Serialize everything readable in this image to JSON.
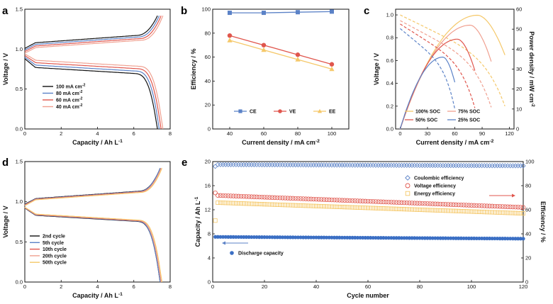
{
  "chart_data": [
    {
      "panel": "a",
      "type": "line",
      "xlabel": "Capacity / Ah L",
      "xlabel_sup": "-1",
      "ylabel": "Voltage / V",
      "xlim": [
        0,
        8
      ],
      "ylim": [
        0,
        1.5
      ],
      "xticks": [
        0,
        2,
        4,
        6,
        8
      ],
      "yticks": [
        0.0,
        0.5,
        1.0,
        1.5
      ],
      "xtick_labels": [
        "0",
        "2",
        "4",
        "6",
        "8"
      ],
      "ytick_labels": [
        "0.0",
        "0.5",
        "1.0",
        "1.5"
      ],
      "legend_position": "bottom-left",
      "series": [
        {
          "name": "100 mA cm",
          "sup": "-2",
          "color": "#111111",
          "charge_start": 1.01,
          "charge_mid": 1.08,
          "charge_end": 1.4,
          "discharge_start": 0.88,
          "discharge_mid": 0.77,
          "capacity": 7.3
        },
        {
          "name": "80 mA cm",
          "sup": "-2",
          "color": "#5b82c7",
          "charge_start": 0.99,
          "charge_mid": 1.06,
          "charge_end": 1.4,
          "discharge_start": 0.9,
          "discharge_mid": 0.8,
          "capacity": 7.4
        },
        {
          "name": "60 mA cm",
          "sup": "-2",
          "color": "#e0564d",
          "charge_start": 0.97,
          "charge_mid": 1.04,
          "charge_end": 1.4,
          "discharge_start": 0.92,
          "discharge_mid": 0.83,
          "capacity": 7.5
        },
        {
          "name": "40 mA cm",
          "sup": "-2",
          "color": "#f0a090",
          "charge_start": 0.95,
          "charge_mid": 1.02,
          "charge_end": 1.4,
          "discharge_start": 0.94,
          "discharge_mid": 0.86,
          "capacity": 7.6
        }
      ]
    },
    {
      "panel": "b",
      "type": "line",
      "xlabel": "Current density / mA cm",
      "xlabel_sup": "-2",
      "ylabel": "Efficiency / %",
      "xlim": [
        30,
        110
      ],
      "ylim": [
        0,
        100
      ],
      "xticks": [
        40,
        60,
        80,
        100
      ],
      "yticks": [
        0,
        20,
        40,
        60,
        80,
        100
      ],
      "xtick_labels": [
        "40",
        "60",
        "80",
        "100"
      ],
      "ytick_labels": [
        "0",
        "20",
        "40",
        "60",
        "80",
        "100"
      ],
      "legend_position": "bottom-center",
      "x": [
        40,
        60,
        80,
        100
      ],
      "series": [
        {
          "name": "CE",
          "color": "#5b82c7",
          "marker": "square",
          "values": [
            97,
            97,
            97.5,
            98
          ]
        },
        {
          "name": "VE",
          "color": "#e0564d",
          "marker": "circle",
          "values": [
            78,
            70,
            62,
            54
          ]
        },
        {
          "name": "EE",
          "color": "#f5c869",
          "marker": "triangle",
          "values": [
            74,
            66,
            58,
            50
          ]
        }
      ]
    },
    {
      "panel": "c",
      "type": "line",
      "xlabel": "Current density / mA cm",
      "xlabel_sup": "-2",
      "ylabel": "Voltage / V",
      "y2label": "Power density / mW cm",
      "y2label_sup": "-2",
      "xlim": [
        -5,
        125
      ],
      "ylim": [
        0,
        1.05
      ],
      "y2lim": [
        0,
        60
      ],
      "xticks": [
        0,
        30,
        60,
        90,
        120
      ],
      "yticks": [
        0.0,
        0.2,
        0.4,
        0.6,
        0.8,
        1.0
      ],
      "y2ticks": [
        0,
        10,
        20,
        30,
        40,
        50,
        60
      ],
      "xtick_labels": [
        "0",
        "30",
        "60",
        "90",
        "120"
      ],
      "ytick_labels": [
        "0.0",
        "0.2",
        "0.4",
        "0.6",
        "0.8",
        "1.0"
      ],
      "y2tick_labels": [
        "0",
        "10",
        "20",
        "30",
        "40",
        "50",
        "60"
      ],
      "legend_position": "bottom-right",
      "series": [
        {
          "name": "100% SOC",
          "color": "#f5c869",
          "ocv": 1.0,
          "max_current": 115,
          "peak_power": 57,
          "peak_current": 85
        },
        {
          "name": "75% SOC",
          "color": "#f0a090",
          "ocv": 0.95,
          "max_current": 100,
          "peak_power": 52,
          "peak_current": 77
        },
        {
          "name": "50% SOC",
          "color": "#e0564d",
          "ocv": 0.92,
          "max_current": 82,
          "peak_power": 45,
          "peak_current": 63
        },
        {
          "name": "25% SOC",
          "color": "#5b82c7",
          "ocv": 0.88,
          "max_current": 60,
          "peak_power": 36,
          "peak_current": 47
        }
      ]
    },
    {
      "panel": "d",
      "type": "line",
      "xlabel": "Capacity / Ah L",
      "xlabel_sup": "-1",
      "ylabel": "Voltage / V",
      "xlim": [
        0,
        8
      ],
      "ylim": [
        0,
        1.5
      ],
      "xticks": [
        0,
        2,
        4,
        6,
        8
      ],
      "yticks": [
        0.0,
        0.5,
        1.0,
        1.5
      ],
      "xtick_labels": [
        "0",
        "2",
        "4",
        "6",
        "8"
      ],
      "ytick_labels": [
        "0.0",
        "0.5",
        "1.0",
        "1.5"
      ],
      "legend_position": "bottom-left",
      "series": [
        {
          "name": "2nd cycle",
          "color": "#111111",
          "capacity": 7.45
        },
        {
          "name": "5th cycle",
          "color": "#5b82c7",
          "capacity": 7.45
        },
        {
          "name": "10th cycle",
          "color": "#e0564d",
          "capacity": 7.5
        },
        {
          "name": "20th cycle",
          "color": "#f0a090",
          "capacity": 7.5
        },
        {
          "name": "50th cycle",
          "color": "#f5c869",
          "capacity": 7.55
        }
      ]
    },
    {
      "panel": "e",
      "type": "scatter",
      "xlabel": "Cycle number",
      "ylabel": "Capacity / Ah L",
      "ylabel_sup": "-1",
      "y2label": "Efficiency / %",
      "xlim": [
        0,
        120
      ],
      "ylim": [
        0,
        20
      ],
      "y2lim": [
        0,
        100
      ],
      "xticks": [
        0,
        20,
        40,
        60,
        80,
        100,
        120
      ],
      "yticks": [
        0,
        4,
        8,
        12,
        16,
        20
      ],
      "y2ticks": [
        0,
        20,
        40,
        60,
        80,
        100
      ],
      "xtick_labels": [
        "0",
        "20",
        "40",
        "60",
        "80",
        "100",
        "120"
      ],
      "ytick_labels": [
        "0",
        "4",
        "8",
        "12",
        "16",
        "20"
      ],
      "y2tick_labels": [
        "0",
        "20",
        "40",
        "60",
        "80",
        "100"
      ],
      "legend_position": "top-center",
      "series": [
        {
          "name": "Coulombic efficiency",
          "axis": "right",
          "color": "#5b82c7",
          "marker": "diamond-open",
          "start": 97.5,
          "end": 96.5
        },
        {
          "name": "Voltage efficiency",
          "axis": "right",
          "color": "#e0564d",
          "marker": "circle-open",
          "start": 72,
          "end": 62
        },
        {
          "name": "Energy efficiency",
          "axis": "right",
          "color": "#f5c869",
          "marker": "square-open",
          "start": 66,
          "end": 57
        },
        {
          "name": "Discharge capacity",
          "axis": "left",
          "color": "#3b6fc4",
          "marker": "circle",
          "start": 7.5,
          "end": 7.2
        }
      ]
    }
  ],
  "panel_labels": [
    "a",
    "b",
    "c",
    "d",
    "e"
  ]
}
